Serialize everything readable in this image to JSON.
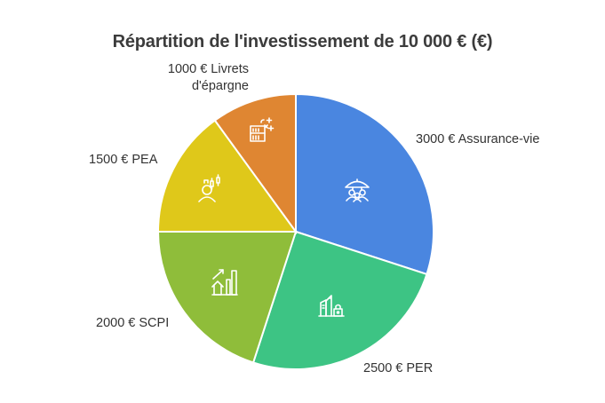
{
  "title": "Répartition de l'investissement de 10 000 € (€)",
  "chart_data": {
    "type": "pie",
    "title": "Répartition de l'investissement de 10 000 € (€)",
    "categories": [
      "Assurance-vie",
      "PER",
      "SCPI",
      "PEA",
      "Livrets d'épargne"
    ],
    "values": [
      3000,
      2500,
      2000,
      1500,
      1000
    ],
    "unit": "€",
    "total": 10000,
    "start_angle": "12 o'clock",
    "direction": "clockwise",
    "legend": "none (labels outside slices)",
    "slices": [
      {
        "label": "3000 € Assurance-vie",
        "name": "Assurance-vie",
        "value": 3000,
        "color": "#4a86e0",
        "icon": "umbrella-family-icon"
      },
      {
        "label": "2500 € PER",
        "name": "PER",
        "value": 2500,
        "color": "#3dc484",
        "icon": "buildings-lock-icon"
      },
      {
        "label": "2000 € SCPI",
        "name": "SCPI",
        "value": 2000,
        "color": "#8fbd3a",
        "icon": "house-growth-chart-icon"
      },
      {
        "label": "1500 € PEA",
        "name": "PEA",
        "value": 1500,
        "color": "#dfc81a",
        "icon": "investor-candlestick-icon"
      },
      {
        "label": "1000 € Livrets d'épargne",
        "name": "Livrets d'épargne",
        "value": 1000,
        "color": "#df8632",
        "icon": "bank-savings-icon"
      }
    ]
  },
  "labels": {
    "assurance": "3000 € Assurance-vie",
    "per": "2500 € PER",
    "scpi": "2000 € SCPI",
    "pea": "1500 € PEA",
    "livrets_line1": "1000 € Livrets",
    "livrets_line2": "d'épargne"
  }
}
